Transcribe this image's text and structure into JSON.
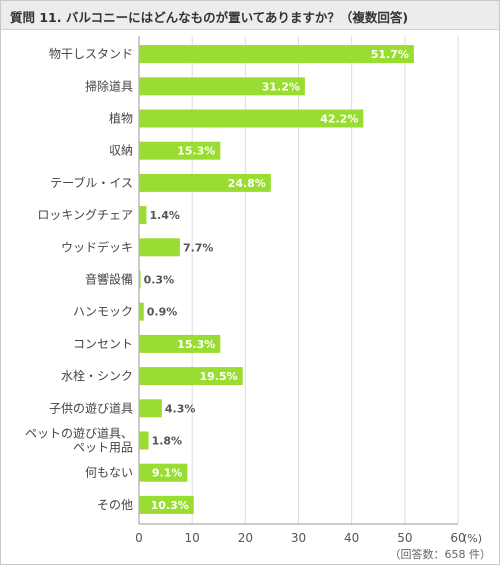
{
  "title": "質問 11. バルコニーにはどんなものが置いてありますか？（複数回答)",
  "chart_data": {
    "type": "bar",
    "orientation": "horizontal",
    "categories": [
      "物干しスタンド",
      "掃除道具",
      "植物",
      "収納",
      "テーブル・イス",
      "ロッキングチェア",
      "ウッドデッキ",
      "音響設備",
      "ハンモック",
      "コンセント",
      "水栓・シンク",
      "子供の遊び道具",
      "ペットの遊び道具、ペット用品",
      "何もない",
      "その他"
    ],
    "category_lines": [
      [
        "物干しスタンド"
      ],
      [
        "掃除道具"
      ],
      [
        "植物"
      ],
      [
        "収納"
      ],
      [
        "テーブル・イス"
      ],
      [
        "ロッキングチェア"
      ],
      [
        "ウッドデッキ"
      ],
      [
        "音響設備"
      ],
      [
        "ハンモック"
      ],
      [
        "コンセント"
      ],
      [
        "水栓・シンク"
      ],
      [
        "子供の遊び道具"
      ],
      [
        "ペットの遊び道具、",
        "ペット用品"
      ],
      [
        "何もない"
      ],
      [
        "その他"
      ]
    ],
    "values": [
      51.7,
      31.2,
      42.2,
      15.3,
      24.8,
      1.4,
      7.7,
      0.3,
      0.9,
      15.3,
      19.5,
      4.3,
      1.8,
      9.1,
      10.3
    ],
    "value_labels": [
      "51.7%",
      "31.2%",
      "42.2%",
      "15.3%",
      "24.8%",
      "1.4%",
      "7.7%",
      "0.3%",
      "0.9%",
      "15.3%",
      "19.5%",
      "4.3%",
      "1.8%",
      "9.1%",
      "10.3%"
    ],
    "xlim": [
      0,
      60
    ],
    "xticks": [
      0,
      10,
      20,
      30,
      40,
      50,
      60
    ],
    "xtick_labels": [
      "0",
      "10",
      "20",
      "30",
      "40",
      "50",
      "60"
    ],
    "unit_label": "(%)",
    "note": "（回答数：658 件）",
    "bar_color": "#99dd33",
    "grid": true
  }
}
